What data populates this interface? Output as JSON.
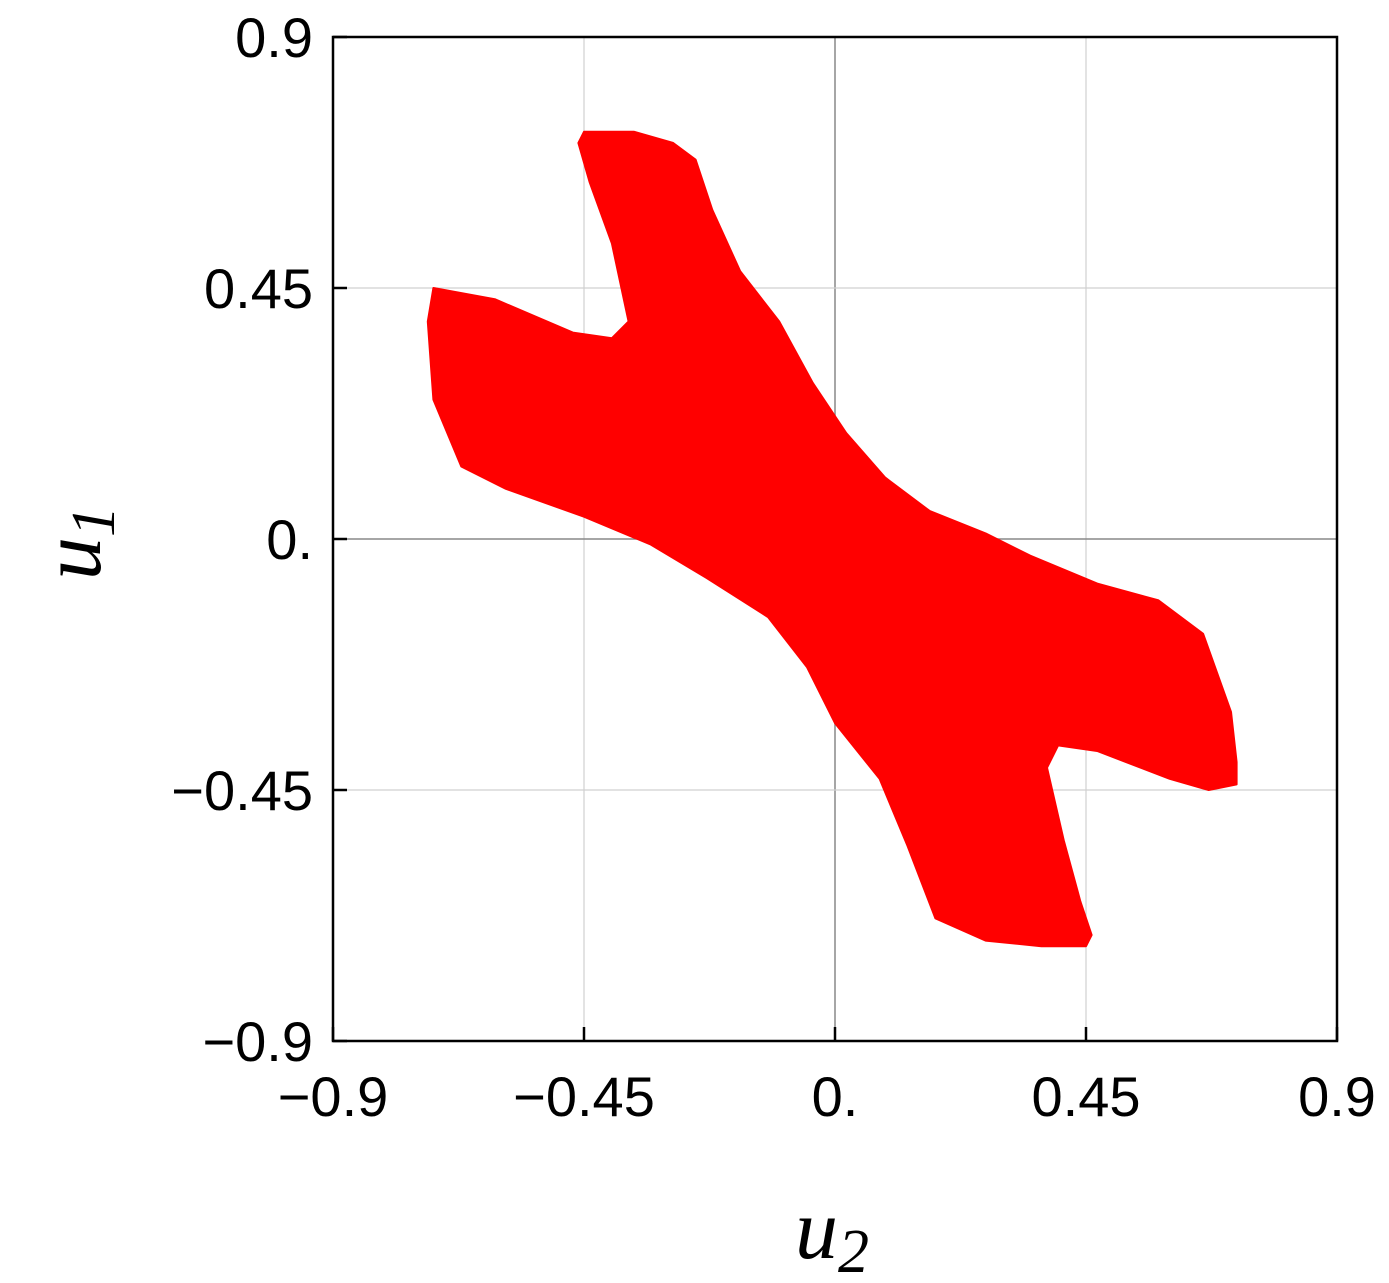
{
  "chart_data": {
    "type": "area",
    "xlabel": "u",
    "xlabel_sub": "2",
    "ylabel": "u",
    "ylabel_sub": "1",
    "xlim": [
      -0.9,
      0.9
    ],
    "ylim": [
      -0.9,
      0.9
    ],
    "grid": true,
    "xticks": [
      -0.9,
      -0.45,
      0.0,
      0.45,
      0.9
    ],
    "xtick_labels": [
      "−0.9",
      "−0.45",
      "0.",
      "0.45",
      "0.9"
    ],
    "yticks": [
      -0.9,
      -0.45,
      0.0,
      0.45,
      0.9
    ],
    "ytick_labels": [
      "−0.9",
      "−0.45",
      "0.",
      "0.45",
      "0.9"
    ],
    "fill_color": "#ff0000",
    "series": [
      {
        "region": [
          [
            -0.45,
            0.73
          ],
          [
            -0.36,
            0.73
          ],
          [
            -0.29,
            0.71
          ],
          [
            -0.25,
            0.68
          ],
          [
            -0.22,
            0.59
          ],
          [
            -0.17,
            0.48
          ],
          [
            -0.1,
            0.39
          ],
          [
            -0.04,
            0.28
          ],
          [
            0.02,
            0.19
          ],
          [
            0.09,
            0.11
          ],
          [
            0.17,
            0.05
          ],
          [
            0.27,
            0.01
          ],
          [
            0.35,
            -0.03
          ],
          [
            0.47,
            -0.08
          ],
          [
            0.58,
            -0.11
          ],
          [
            0.66,
            -0.17
          ],
          [
            0.71,
            -0.31
          ],
          [
            0.72,
            -0.4
          ],
          [
            0.72,
            -0.44
          ],
          [
            0.67,
            -0.45
          ],
          [
            0.6,
            -0.43
          ],
          [
            0.47,
            -0.38
          ],
          [
            0.4,
            -0.37
          ],
          [
            0.38,
            -0.41
          ],
          [
            0.41,
            -0.54
          ],
          [
            0.44,
            -0.65
          ],
          [
            0.46,
            -0.71
          ],
          [
            0.45,
            -0.73
          ],
          [
            0.37,
            -0.73
          ],
          [
            0.27,
            -0.72
          ],
          [
            0.18,
            -0.68
          ],
          [
            0.13,
            -0.55
          ],
          [
            0.08,
            -0.43
          ],
          [
            0.0,
            -0.33
          ],
          [
            -0.05,
            -0.23
          ],
          [
            -0.12,
            -0.14
          ],
          [
            -0.23,
            -0.07
          ],
          [
            -0.33,
            -0.01
          ],
          [
            -0.45,
            0.04
          ],
          [
            -0.59,
            0.09
          ],
          [
            -0.67,
            0.13
          ],
          [
            -0.72,
            0.25
          ],
          [
            -0.73,
            0.39
          ],
          [
            -0.72,
            0.45
          ],
          [
            -0.61,
            0.43
          ],
          [
            -0.47,
            0.37
          ],
          [
            -0.4,
            0.36
          ],
          [
            -0.37,
            0.39
          ],
          [
            -0.4,
            0.53
          ],
          [
            -0.44,
            0.64
          ],
          [
            -0.46,
            0.71
          ]
        ]
      }
    ]
  }
}
